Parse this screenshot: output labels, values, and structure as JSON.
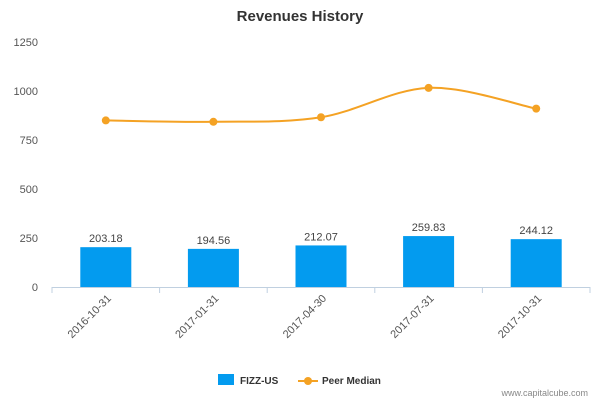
{
  "chart_data": {
    "type": "bar",
    "title": "Revenues History",
    "xlabel": "",
    "ylabel": "",
    "categories": [
      "2016-10-31",
      "2017-01-31",
      "2017-04-30",
      "2017-07-31",
      "2017-10-31"
    ],
    "y_ticks": [
      "0",
      "250",
      "500",
      "750",
      "1000",
      "1250"
    ],
    "ylim": [
      0,
      1250
    ],
    "grid": false,
    "legend_position": "bottom",
    "series": [
      {
        "name": "FIZZ-US",
        "kind": "bar",
        "color": "#039BEF",
        "values": [
          203.18,
          194.56,
          212.07,
          259.83,
          244.12
        ],
        "labels": [
          "203.18",
          "194.56",
          "212.07",
          "259.83",
          "244.12"
        ]
      },
      {
        "name": "Peer Median",
        "kind": "line",
        "color": "#F4A224",
        "values": [
          850,
          843,
          866,
          1016,
          910
        ]
      }
    ]
  },
  "watermark": "www.capitalcube.com"
}
